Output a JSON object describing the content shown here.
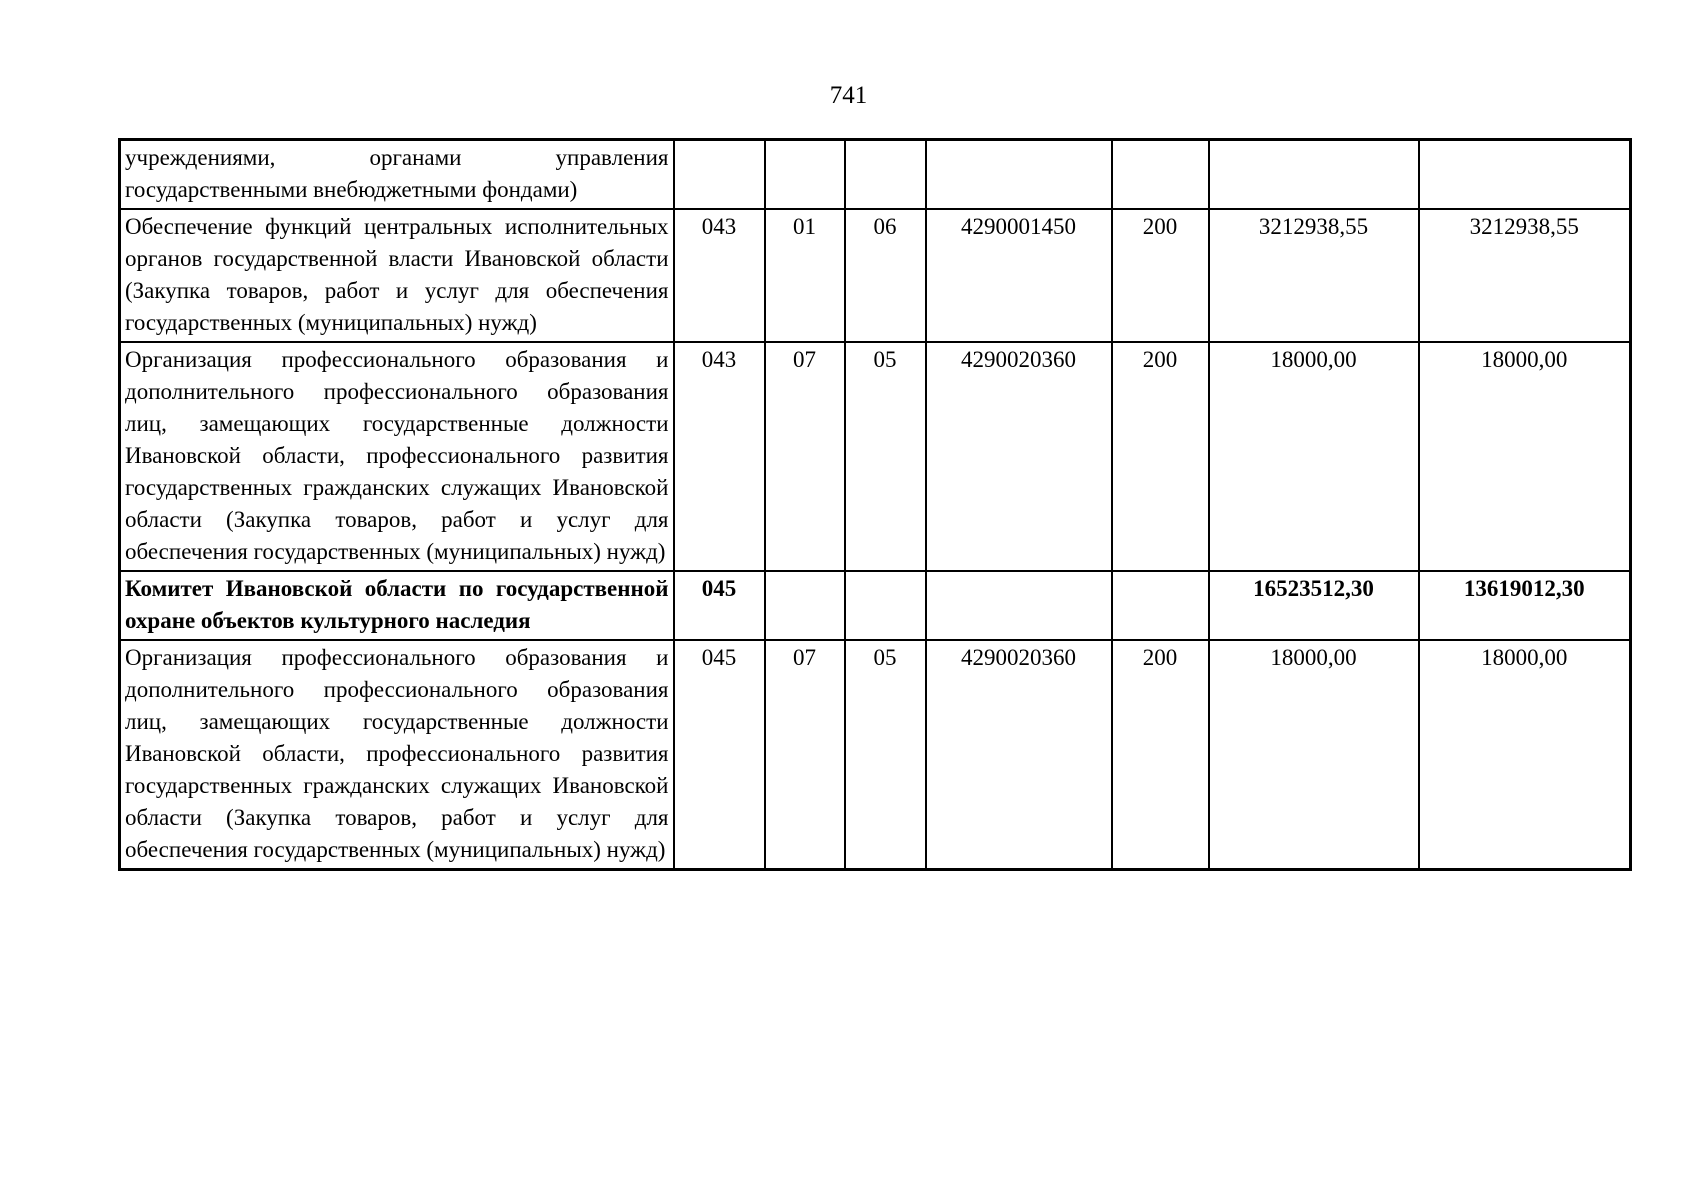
{
  "page": {
    "number": "741",
    "background_color": "#ffffff",
    "text_color": "#000000",
    "border_color": "#000000"
  },
  "table": {
    "column_keys": [
      "name",
      "code1",
      "code2",
      "code3",
      "code4",
      "code5",
      "amount1",
      "amount2"
    ],
    "rows": [
      {
        "bold": false,
        "name": "учреждениями, органами управления государственными внебюджетными фондами)",
        "code1": "",
        "code2": "",
        "code3": "",
        "code4": "",
        "code5": "",
        "amount1": "",
        "amount2": ""
      },
      {
        "bold": false,
        "name": "Обеспечение функций центральных исполнительных органов государственной власти Ивановской области (Закупка товаров, работ и услуг для обеспечения государственных (муниципальных) нужд)",
        "code1": "043",
        "code2": "01",
        "code3": "06",
        "code4": "4290001450",
        "code5": "200",
        "amount1": "3212938,55",
        "amount2": "3212938,55"
      },
      {
        "bold": false,
        "name": "Организация профессионального образования и дополнительного профессионального образования лиц, замещающих государственные должности Ивановской области, профессионального развития государственных гражданских служащих Ивановской области (Закупка товаров, работ и услуг для обеспечения государственных (муниципальных) нужд)",
        "code1": "043",
        "code2": "07",
        "code3": "05",
        "code4": "4290020360",
        "code5": "200",
        "amount1": "18000,00",
        "amount2": "18000,00"
      },
      {
        "bold": true,
        "name": "Комитет Ивановской области по государственной охране объектов культурного наследия",
        "code1": "045",
        "code2": "",
        "code3": "",
        "code4": "",
        "code5": "",
        "amount1": "16523512,30",
        "amount2": "13619012,30"
      },
      {
        "bold": false,
        "name": "Организация профессионального образования и дополнительного профессионального образования лиц, замещающих государственные должности Ивановской области, профессионального развития государственных гражданских служащих Ивановской области (Закупка товаров, работ и услуг для обеспечения государственных (муниципальных) нужд)",
        "code1": "045",
        "code2": "07",
        "code3": "05",
        "code4": "4290020360",
        "code5": "200",
        "amount1": "18000,00",
        "amount2": "18000,00"
      }
    ]
  }
}
